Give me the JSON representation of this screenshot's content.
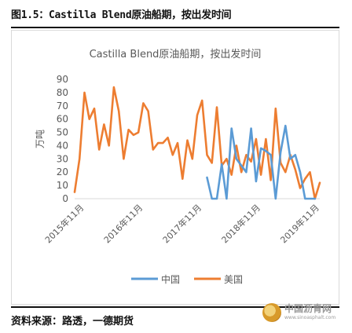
{
  "figure": {
    "header": "图1.5：Castilla Blend原油船期，按出发时间",
    "source": "资料来源：路透，一德期货"
  },
  "watermark": {
    "text": "中国沥青网",
    "url": "www.sinoasphalt.com"
  },
  "chart_data": {
    "type": "line",
    "title": "Castilla Blend原油船期，按出发时间",
    "ylabel": "万吨",
    "xlabel": "",
    "ylim": [
      0,
      90
    ],
    "yticks": [
      0,
      10,
      20,
      30,
      40,
      50,
      60,
      70,
      80,
      90
    ],
    "x_tick_labels": [
      "2015年11月",
      "2016年11月",
      "2017年11月",
      "2018年11月",
      "2019年11月"
    ],
    "legend": "bottom",
    "grid": false,
    "colors": {
      "中国": "#5b9bd5",
      "美国": "#ed7d31"
    },
    "series": [
      {
        "name": "美国",
        "x": [
          "2015-10",
          "2015-11",
          "2015-12",
          "2016-01",
          "2016-02",
          "2016-03",
          "2016-04",
          "2016-05",
          "2016-06",
          "2016-07",
          "2016-08",
          "2016-09",
          "2016-10",
          "2016-11",
          "2016-12",
          "2017-01",
          "2017-02",
          "2017-03",
          "2017-04",
          "2017-05",
          "2017-06",
          "2017-07",
          "2017-08",
          "2017-09",
          "2017-10",
          "2017-11",
          "2017-12",
          "2018-01",
          "2018-02",
          "2018-03",
          "2018-04",
          "2018-05",
          "2018-06",
          "2018-07",
          "2018-08",
          "2018-09",
          "2018-10",
          "2018-11",
          "2018-12",
          "2019-01",
          "2019-02",
          "2019-03",
          "2019-04",
          "2019-05",
          "2019-06",
          "2019-07",
          "2019-08",
          "2019-09",
          "2019-10",
          "2019-11",
          "2019-12"
        ],
        "values": [
          5,
          30,
          80,
          60,
          68,
          37,
          56,
          40,
          84,
          66,
          30,
          52,
          48,
          50,
          72,
          66,
          37,
          42,
          42,
          46,
          33,
          42,
          15,
          44,
          30,
          63,
          74,
          33,
          27,
          69,
          25,
          30,
          18,
          40,
          20,
          33,
          28,
          45,
          18,
          45,
          14,
          68,
          27,
          20,
          33,
          22,
          8,
          15,
          20,
          0,
          12
        ]
      },
      {
        "name": "中国",
        "x": [
          "2018-01",
          "2018-02",
          "2018-03",
          "2018-04",
          "2018-05",
          "2018-06",
          "2018-07",
          "2018-08",
          "2018-09",
          "2018-10",
          "2018-11",
          "2018-12",
          "2019-01",
          "2019-02",
          "2019-03",
          "2019-04",
          "2019-05",
          "2019-06",
          "2019-07",
          "2019-08",
          "2019-09",
          "2019-10",
          "2019-11"
        ],
        "values": [
          16,
          0,
          0,
          26,
          0,
          53,
          30,
          25,
          20,
          53,
          13,
          38,
          36,
          33,
          0,
          35,
          55,
          30,
          33,
          20,
          0,
          0,
          0
        ]
      }
    ]
  }
}
